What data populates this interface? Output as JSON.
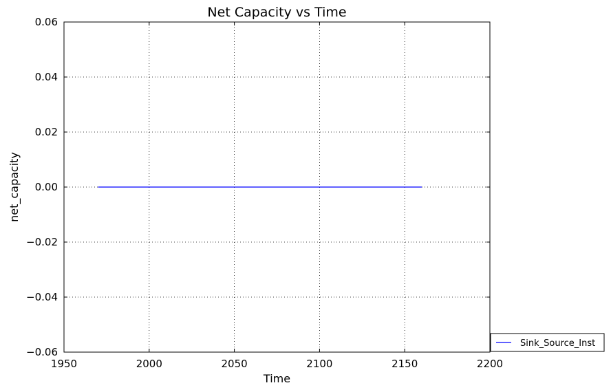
{
  "chart_data": {
    "type": "line",
    "title": "Net Capacity vs Time",
    "xlabel": "Time",
    "ylabel": "net_capacity",
    "xlim": [
      1950,
      2200
    ],
    "ylim": [
      -0.06,
      0.06
    ],
    "xticks": [
      1950,
      2000,
      2050,
      2100,
      2150,
      2200
    ],
    "yticks": [
      -0.06,
      -0.04,
      -0.02,
      0.0,
      0.02,
      0.04,
      0.06
    ],
    "grid": true,
    "legend_position": "outside-right-bottom",
    "series": [
      {
        "name": "Sink_Source_Inst",
        "color": "#0000ff",
        "x": [
          1970,
          2160
        ],
        "y": [
          0.0,
          0.0
        ]
      }
    ]
  }
}
